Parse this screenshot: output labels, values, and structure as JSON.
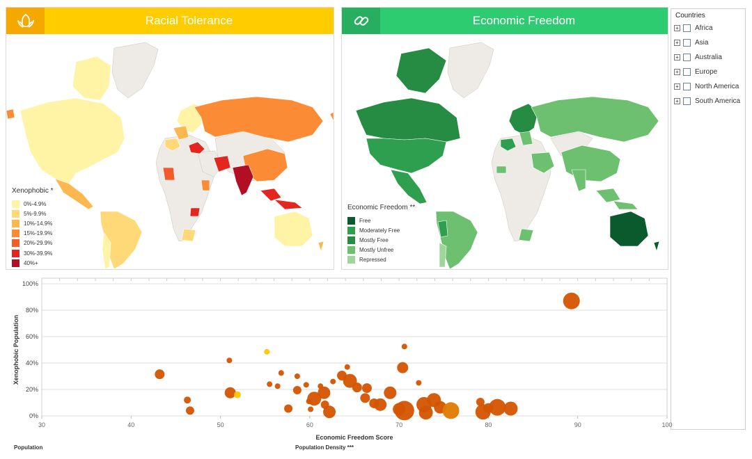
{
  "panels": {
    "racial": {
      "title": "Racial Tolerance",
      "icon": "hands-icon",
      "header_color": "#FFCC00",
      "icon_bg": "#F5A800",
      "legend": {
        "title": "Xenophobic *",
        "items": [
          {
            "label": "0%-4.9%",
            "color": "#FFF3A6"
          },
          {
            "label": "5%-9.9%",
            "color": "#FFD977"
          },
          {
            "label": "10%-14.9%",
            "color": "#FDB751"
          },
          {
            "label": "15%-19.9%",
            "color": "#FB8C35"
          },
          {
            "label": "20%-29.9%",
            "color": "#F45B2A"
          },
          {
            "label": "30%-39.9%",
            "color": "#E3261F"
          },
          {
            "label": "40%+",
            "color": "#B30F24"
          }
        ]
      }
    },
    "economic": {
      "title": "Economic Freedom",
      "icon": "chain-link-icon",
      "header_color": "#2ECC71",
      "icon_bg": "#27AE60",
      "legend": {
        "title": "Economic Freedom **",
        "items": [
          {
            "label": "Free",
            "color": "#0B5A2E"
          },
          {
            "label": "Moderately Free",
            "color": "#2E9E4F"
          },
          {
            "label": "Mostly Free",
            "color": "#278C43"
          },
          {
            "label": "Mostly Unfree",
            "color": "#6CC070"
          },
          {
            "label": "Repressed",
            "color": "#9FD79B"
          }
        ]
      }
    }
  },
  "tree": {
    "title": "Countries",
    "items": [
      "Africa",
      "Asia",
      "Australia",
      "Europe",
      "North America",
      "South America"
    ]
  },
  "chart_data": {
    "type": "scatter",
    "title": "",
    "xlabel": "Economic Freedom Score",
    "ylabel": "Xenophobic Population",
    "xlim": [
      30,
      100
    ],
    "ylim": [
      0,
      100
    ],
    "xticks": [
      "30",
      "40",
      "50",
      "60",
      "70",
      "80",
      "90",
      "100"
    ],
    "yticks": [
      "0%",
      "20%",
      "40%",
      "60%",
      "80%",
      "100%"
    ],
    "grid": true,
    "points": [
      {
        "x": 43.2,
        "y": 31.5,
        "size": 7,
        "color": "#D35400"
      },
      {
        "x": 46.3,
        "y": 12.0,
        "size": 5,
        "color": "#D35400"
      },
      {
        "x": 46.6,
        "y": 4.0,
        "size": 6,
        "color": "#D35400"
      },
      {
        "x": 51.0,
        "y": 42.0,
        "size": 4,
        "color": "#D35400"
      },
      {
        "x": 51.1,
        "y": 17.5,
        "size": 8,
        "color": "#D35400"
      },
      {
        "x": 51.9,
        "y": 16.0,
        "size": 5,
        "color": "#FFC400"
      },
      {
        "x": 55.2,
        "y": 48.5,
        "size": 4,
        "color": "#FFC400"
      },
      {
        "x": 56.8,
        "y": 32.5,
        "size": 4,
        "color": "#D35400"
      },
      {
        "x": 55.5,
        "y": 24.0,
        "size": 4,
        "color": "#D35400"
      },
      {
        "x": 56.4,
        "y": 22.5,
        "size": 4,
        "color": "#D35400"
      },
      {
        "x": 57.6,
        "y": 5.5,
        "size": 6,
        "color": "#D35400"
      },
      {
        "x": 58.6,
        "y": 30.0,
        "size": 4,
        "color": "#D35400"
      },
      {
        "x": 58.6,
        "y": 19.5,
        "size": 6,
        "color": "#D35400"
      },
      {
        "x": 59.6,
        "y": 23.5,
        "size": 4,
        "color": "#D35400"
      },
      {
        "x": 59.9,
        "y": 11.0,
        "size": 4,
        "color": "#D35400"
      },
      {
        "x": 60.1,
        "y": 5.0,
        "size": 4,
        "color": "#D35400"
      },
      {
        "x": 60.5,
        "y": 13.0,
        "size": 10,
        "color": "#D35400"
      },
      {
        "x": 61.2,
        "y": 22.5,
        "size": 4,
        "color": "#D35400"
      },
      {
        "x": 61.6,
        "y": 17.5,
        "size": 9,
        "color": "#D35400"
      },
      {
        "x": 61.7,
        "y": 8.5,
        "size": 6,
        "color": "#D35400"
      },
      {
        "x": 62.2,
        "y": 3.0,
        "size": 9,
        "color": "#D35400"
      },
      {
        "x": 62.6,
        "y": 26.0,
        "size": 4,
        "color": "#D35400"
      },
      {
        "x": 63.6,
        "y": 30.5,
        "size": 7,
        "color": "#D35400"
      },
      {
        "x": 64.2,
        "y": 37.0,
        "size": 4,
        "color": "#D35400"
      },
      {
        "x": 64.5,
        "y": 26.5,
        "size": 10,
        "color": "#D35400"
      },
      {
        "x": 65.3,
        "y": 21.5,
        "size": 7,
        "color": "#D35400"
      },
      {
        "x": 66.2,
        "y": 13.5,
        "size": 7,
        "color": "#D35400"
      },
      {
        "x": 66.4,
        "y": 21.0,
        "size": 7,
        "color": "#D35400"
      },
      {
        "x": 67.2,
        "y": 9.5,
        "size": 7,
        "color": "#D35400"
      },
      {
        "x": 67.9,
        "y": 8.5,
        "size": 9,
        "color": "#D35400"
      },
      {
        "x": 69.0,
        "y": 17.5,
        "size": 9,
        "color": "#D35400"
      },
      {
        "x": 70.0,
        "y": 5.0,
        "size": 9,
        "color": "#D35400"
      },
      {
        "x": 70.4,
        "y": 36.5,
        "size": 8,
        "color": "#D35400"
      },
      {
        "x": 70.6,
        "y": 52.5,
        "size": 4,
        "color": "#D35400"
      },
      {
        "x": 70.6,
        "y": 4.0,
        "size": 14,
        "color": "#D35400"
      },
      {
        "x": 72.2,
        "y": 25.0,
        "size": 4,
        "color": "#D35400"
      },
      {
        "x": 72.8,
        "y": 8.5,
        "size": 11,
        "color": "#D35400"
      },
      {
        "x": 73.0,
        "y": 2.5,
        "size": 10,
        "color": "#D35400"
      },
      {
        "x": 73.9,
        "y": 12.0,
        "size": 10,
        "color": "#D35400"
      },
      {
        "x": 74.6,
        "y": 6.5,
        "size": 9,
        "color": "#D35400"
      },
      {
        "x": 75.8,
        "y": 4.0,
        "size": 12,
        "color": "#E07B00"
      },
      {
        "x": 79.1,
        "y": 10.5,
        "size": 6,
        "color": "#D35400"
      },
      {
        "x": 79.4,
        "y": 3.0,
        "size": 11,
        "color": "#D35400"
      },
      {
        "x": 80.0,
        "y": 6.0,
        "size": 7,
        "color": "#D35400"
      },
      {
        "x": 81.0,
        "y": 6.5,
        "size": 12,
        "color": "#D35400"
      },
      {
        "x": 82.5,
        "y": 5.5,
        "size": 10,
        "color": "#D35400"
      },
      {
        "x": 89.3,
        "y": 87.0,
        "size": 12,
        "color": "#D35400"
      }
    ]
  },
  "footer": {
    "left": "Population",
    "center": "Population Density ***"
  }
}
